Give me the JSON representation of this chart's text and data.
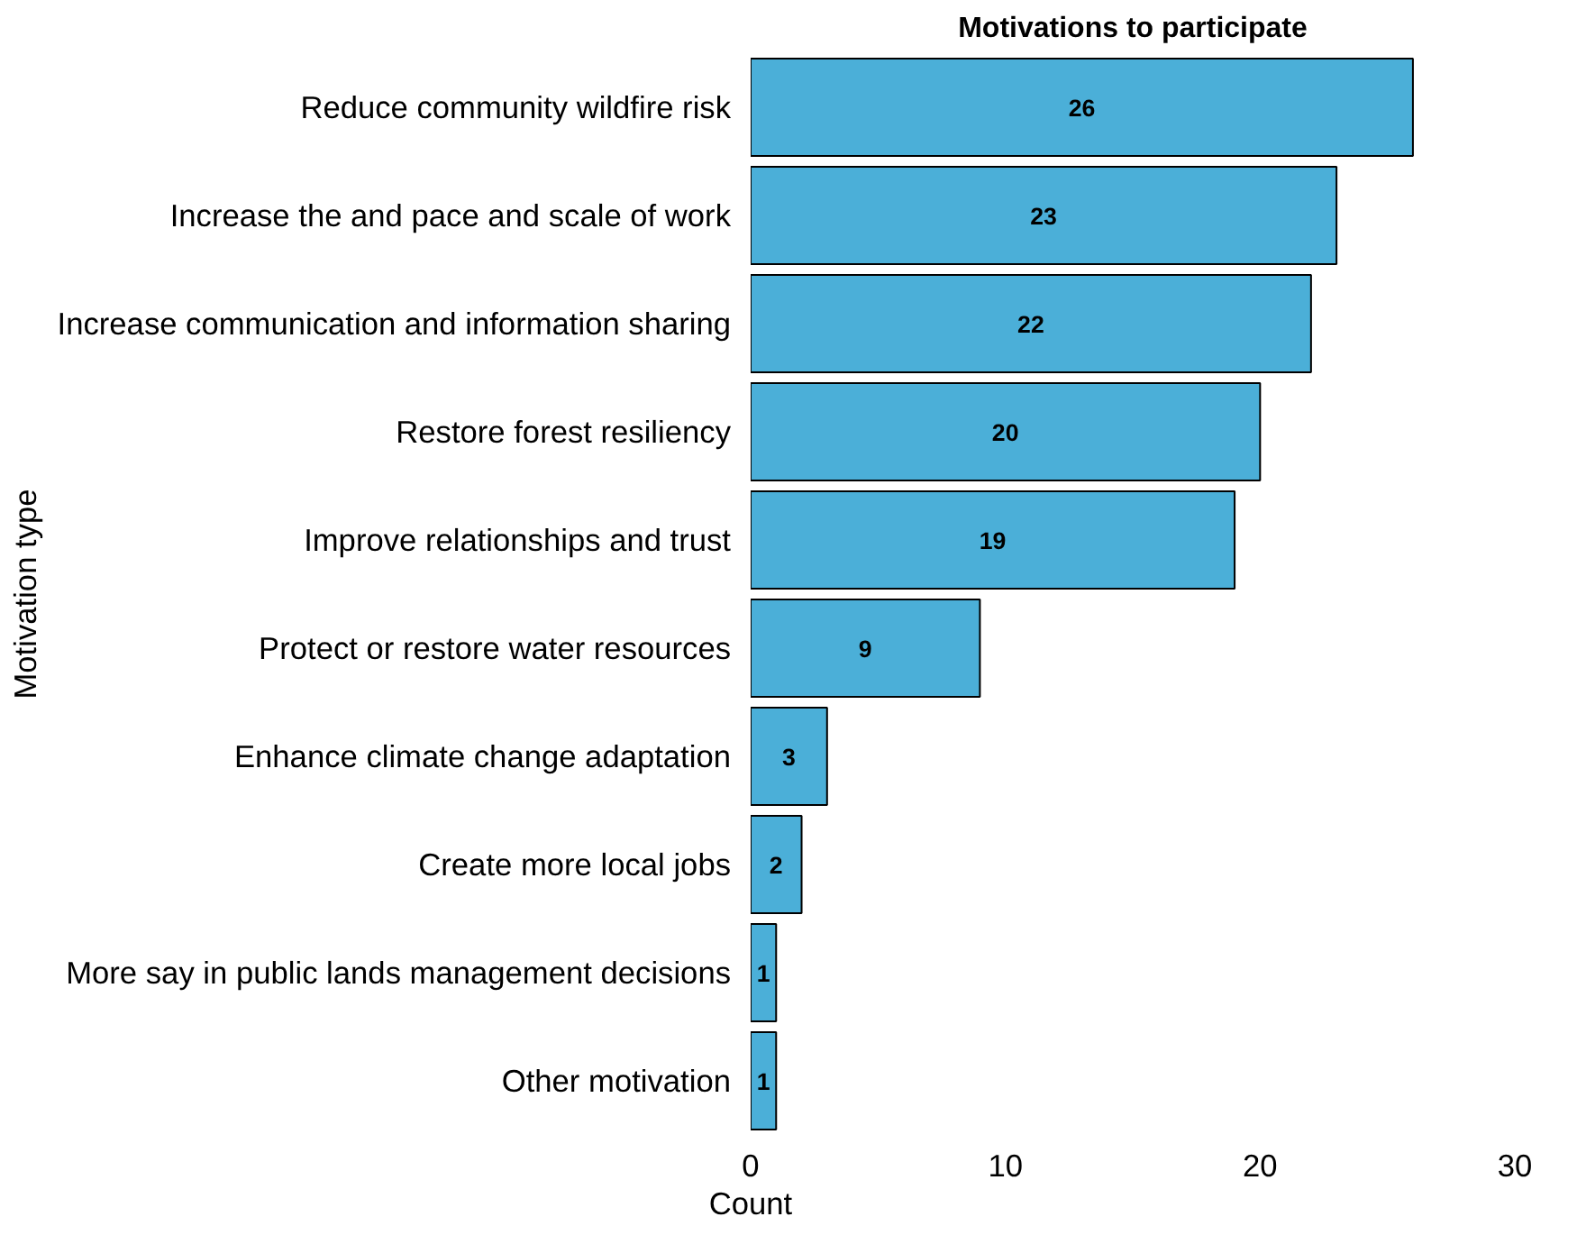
{
  "chart_data": {
    "type": "bar",
    "orientation": "horizontal",
    "title": "Motivations to participate",
    "xlabel": "Count",
    "ylabel": "Motivation type",
    "categories": [
      "Reduce community wildfire risk",
      "Increase the and pace and scale of work",
      "Increase communication and information sharing",
      "Restore forest resiliency",
      "Improve relationships and trust",
      "Protect or restore water resources",
      "Enhance climate change adaptation",
      "Create more local jobs",
      "More say in public lands management decisions",
      "Other motivation"
    ],
    "values": [
      26,
      23,
      22,
      20,
      19,
      9,
      3,
      2,
      1,
      1
    ],
    "color": "#4bafd8",
    "xlim": [
      0,
      30
    ],
    "xticks": [
      0,
      10,
      20,
      30
    ],
    "data_labels": true,
    "grid": false
  }
}
